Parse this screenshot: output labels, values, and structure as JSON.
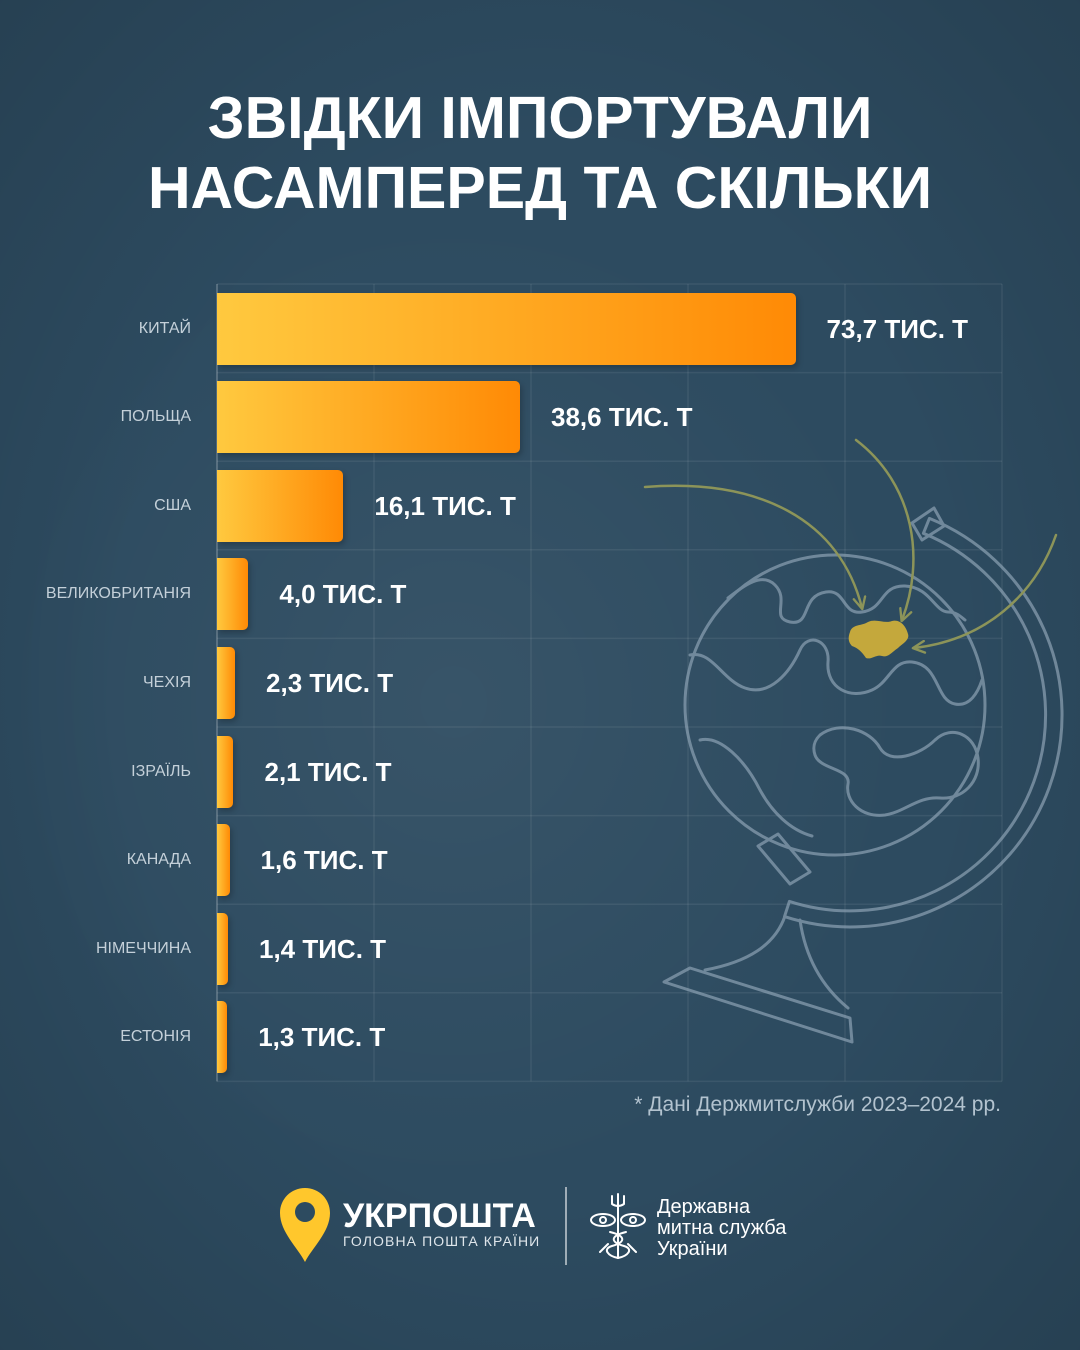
{
  "chart_data": {
    "type": "bar",
    "title": [
      "ЗВІДКИ ІМПОРТУВАЛИ",
      "НАСАМПЕРЕД ТА СКІЛЬКИ"
    ],
    "categories": [
      "КИТАЙ",
      "ПОЛЬЩА",
      "США",
      "ВЕЛИКОБРИТАНІЯ",
      "ЧЕХІЯ",
      "ІЗРАЇЛЬ",
      "КАНАДА",
      "НІМЕЧЧИНА",
      "ЕСТОНІЯ"
    ],
    "values": [
      73.7,
      38.6,
      16.1,
      4.0,
      2.3,
      2.1,
      1.6,
      1.4,
      1.3
    ],
    "value_labels": [
      "73,7 ТИС. Т",
      "38,6 ТИС. Т",
      "16,1 ТИС. Т",
      "4,0 ТИС. Т",
      "2,3 ТИС. Т",
      "2,1 ТИС. Т",
      "1,6 ТИС. Т",
      "1,4 ТИС. Т",
      "1,3 ТИС. Т"
    ],
    "xlabel": "",
    "ylabel": "",
    "xlim": [
      0,
      100
    ],
    "xgrid": [
      0,
      20,
      40,
      60,
      80,
      100
    ],
    "grid": true
  },
  "footnote": "* Дані Держмитслужби 2023–2024 рр.",
  "footer": {
    "ukrposhta": {
      "icon": "location-pin-icon",
      "name": "УКРПОШТА",
      "tagline": "ГОЛОВНА ПОШТА КРАЇНИ"
    },
    "customs": {
      "icon": "customs-emblem-icon",
      "lines": [
        "Державна",
        "митна служба",
        "України"
      ]
    }
  },
  "illustration": {
    "icon": "globe-icon",
    "highlight_icon": "ukraine-map-icon",
    "arrow_icon": "curved-arrow-icon"
  },
  "colors": {
    "background": "#2d4b60",
    "bar_start": "#ffc93f",
    "bar_end": "#ff8a05",
    "title_text": "#ffffff",
    "category_label": "#c4d0d9",
    "footnote_text": "#b3c3cf",
    "logo_yellow": "#ffc72c",
    "ukraine_highlight": "#c4a83c",
    "arrow": "#8c9459",
    "globe_line": "#8aa0b2"
  }
}
